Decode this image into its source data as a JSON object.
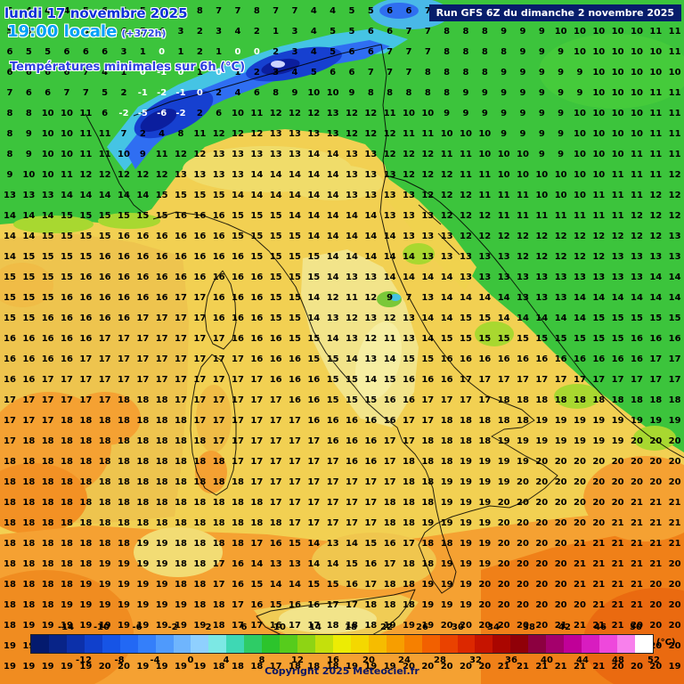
{
  "header": {
    "date_line": "lundi 17 novembre 2025",
    "time_line": "19:00 locale",
    "offset": "(+372h)",
    "subtitle": "Températures minimales sur 6h (°C)"
  },
  "run_info": "Run GFS 6Z du dimanche 2 novembre 2025",
  "copyright": "Copyright 2025 Meteociel.fr",
  "colorbar": {
    "unit": "(°C)",
    "range": [
      -18,
      52
    ],
    "step": 2,
    "top_labels": [
      "-14",
      "-10",
      "-6",
      "-2",
      "2",
      "6",
      "10",
      "14",
      "18",
      "22",
      "26",
      "30",
      "34",
      "38",
      "42",
      "46",
      "50"
    ],
    "bottom_labels": [
      "-12",
      "-8",
      "-4",
      "0",
      "4",
      "8",
      "12",
      "16",
      "20",
      "24",
      "28",
      "32",
      "36",
      "40",
      "44",
      "48",
      "52"
    ],
    "colors": [
      "#041a6e",
      "#082488",
      "#0c30aa",
      "#1040cc",
      "#1654e6",
      "#2268f4",
      "#347ffa",
      "#4f9afc",
      "#6fb5fd",
      "#8fd0fe",
      "#7ce8e4",
      "#3ed8b4",
      "#2ecc66",
      "#2cc42c",
      "#56cc1c",
      "#8ed414",
      "#c4e00c",
      "#ecec04",
      "#f4d800",
      "#f6bc00",
      "#f79e00",
      "#f68000",
      "#f26000",
      "#ea4200",
      "#dc2800",
      "#c61400",
      "#aa0600",
      "#900008",
      "#8c0040",
      "#a4006c",
      "#c00098",
      "#d81cc0",
      "#ee48dc",
      "#f880ec",
      "#ffffff"
    ]
  },
  "map_grid": {
    "rows": [
      "5 4 4 4 5 6 5 5 6 7 8 7 7 8 7 7 4 4 5 5 6 6 7 7 7 8 8 9 9 10 10 11 10 10 11 11",
      "5 5 4 5 5 6 6 5 4 3 2 3 4 2 1 3 4 5 5 6 6 7 7 8 8 8 9 9 9 10 10 10 10 10 11 11",
      "6 5 5 6 6 6 3 1 0 1 2 1 0 0 2 3 4 5 6 6 7 7 7 8 8 8 8 9 9 9 10 10 10 10 10 11",
      "6 6 6 6 7 4 1 0 -1 0 1 0 1 2 3 4 5 6 6 7 7 7 8 8 8 8 9 9 9 9 9 10 10 10 10 10",
      "7 6 6 7 7 5 2 -1 -2 -1 0 2 4 6 8 9 10 10 9 8 8 8 8 8 9 9 9 9 9 9 9 10 10 10 11 11",
      "8 8 10 10 11 6 -2 -5 -6 -2 2 6 10 11 12 12 12 13 12 12 11 10 10 9 9 9 9 9 9 9 10 10 10 10 11 11",
      "8 9 10 10 11 11 7 2 4 8 11 12 12 12 13 13 13 13 12 12 12 11 11 10 10 10 9 9 9 9 10 10 10 10 11 11",
      "8 9 10 10 11 11 10 9 11 12 12 13 13 13 13 13 14 14 13 13 12 12 12 11 11 10 10 10 9 9 10 10 10 11 11 11",
      "9 10 10 11 12 12 12 12 12 13 13 13 13 14 14 14 14 14 13 13 13 12 12 12 11 11 10 10 10 10 10 10 11 11 11 12",
      "13 13 13 14 14 14 14 14 15 15 15 15 14 14 14 14 14 14 13 13 13 13 12 12 12 11 11 11 10 10 10 11 11 11 12 12",
      "14 14 14 15 15 15 15 15 15 16 16 16 15 15 15 14 14 14 14 14 13 13 13 12 12 12 11 11 11 11 11 11 11 12 12 12",
      "14 14 15 15 15 15 16 16 16 16 16 16 15 15 15 15 14 14 14 14 14 13 13 13 12 12 12 12 12 12 12 12 12 12 12 13",
      "14 15 15 15 15 16 16 16 16 16 16 16 16 15 15 15 15 14 14 14 14 14 13 13 13 13 13 12 12 12 12 12 13 13 13 13",
      "15 15 15 15 16 16 16 16 16 16 16 16 16 16 15 15 15 14 13 13 14 14 14 14 13 13 13 13 13 13 13 13 13 13 14 14",
      "15 15 15 16 16 16 16 16 16 17 17 16 16 16 15 15 14 12 11 12 9 7 13 14 14 14 14 13 13 13 14 14 14 14 14 14",
      "15 15 16 16 16 16 16 17 17 17 17 16 16 16 15 15 14 13 12 13 12 13 14 14 15 15 14 14 14 14 14 15 15 15 15 15",
      "16 16 16 16 16 17 17 17 17 17 17 17 16 16 16 15 15 14 13 12 11 13 14 15 15 15 15 15 15 15 15 15 15 16 16 16",
      "16 16 16 16 17 17 17 17 17 17 17 17 17 16 16 16 15 15 14 13 14 15 15 16 16 16 16 16 16 16 16 16 16 16 17 17",
      "16 16 17 17 17 17 17 17 17 17 17 17 17 17 16 16 16 15 15 14 15 16 16 16 17 17 17 17 17 17 17 17 17 17 17 17",
      "17 17 17 17 17 17 18 18 18 17 17 17 17 17 17 16 16 15 15 15 16 16 17 17 17 17 18 18 18 18 18 18 18 18 18 18",
      "17 17 17 18 18 18 18 18 18 18 17 17 17 17 17 17 16 16 16 16 16 17 17 18 18 18 18 18 19 19 19 19 19 19 19 19",
      "17 18 18 18 18 18 18 18 18 18 18 17 17 17 17 17 17 16 16 16 17 17 18 18 18 18 19 19 19 19 19 19 19 20 20 20",
      "18 18 18 18 18 18 18 18 18 18 18 18 17 17 17 17 17 17 16 16 17 18 18 18 19 19 19 19 20 20 20 20 20 20 20 20",
      "18 18 18 18 18 18 18 18 18 18 18 18 18 17 17 17 17 17 17 17 17 18 18 19 19 19 19 20 20 20 20 20 20 20 20 20",
      "18 18 18 18 18 18 18 18 18 18 18 18 18 18 17 17 17 17 17 17 18 18 18 19 19 19 20 20 20 20 20 20 20 21 21 21",
      "18 18 18 18 18 18 18 18 18 18 18 18 18 18 18 17 17 17 17 17 18 18 19 19 19 19 20 20 20 20 20 20 21 21 21 21",
      "18 18 18 18 18 18 18 19 19 18 18 18 18 17 16 15 14 13 14 15 16 17 18 18 19 19 20 20 20 20 21 21 21 21 21 21",
      "18 18 18 18 18 19 19 19 19 18 18 17 16 14 13 13 14 14 15 16 17 18 18 19 19 19 20 20 20 20 21 21 21 21 21 20",
      "18 18 18 18 19 19 19 19 19 18 18 17 16 15 14 14 15 15 16 17 18 18 19 19 19 20 20 20 20 20 21 21 21 21 20 20",
      "18 18 18 19 19 19 19 19 19 19 18 18 17 16 15 16 16 17 17 18 18 18 19 19 19 20 20 20 20 20 20 21 21 21 20 20",
      "18 19 19 19 19 19 19 19 19 19 19 18 17 17 16 17 17 18 18 18 19 19 19 20 20 20 20 20 20 21 21 21 21 20 20 20",
      "19 19 19 19 19 19 19 19 19 19 19 18 18 17 17 17 18 18 18 19 19 19 20 20 20 20 20 20 21 21 21 21 21 20 20 20",
      "19 19 19 19 19 20 20 19 19 19 19 18 18 18 17 18 18 18 19 19 19 20 20 20 20 20 21 21 21 21 21 21 20 20 20 19"
    ]
  }
}
